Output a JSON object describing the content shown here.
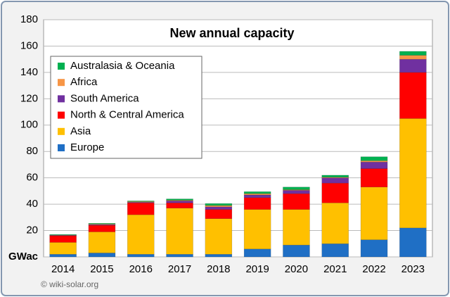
{
  "chart_data": {
    "type": "stacked-bar",
    "title": "New annual capacity",
    "credit": "© wiki-solar.org",
    "categories": [
      "2014",
      "2015",
      "2016",
      "2017",
      "2018",
      "2019",
      "2020",
      "2021",
      "2022",
      "2023"
    ],
    "series": [
      {
        "name": "Europe",
        "color": "#1f6fc5",
        "values": [
          2,
          3,
          2,
          2,
          2,
          6,
          9,
          10,
          13,
          22
        ]
      },
      {
        "name": "Asia",
        "color": "#ffc000",
        "values": [
          9,
          16,
          30,
          35,
          27,
          30,
          27,
          31,
          40,
          83
        ]
      },
      {
        "name": "North & Central America",
        "color": "#ff0000",
        "values": [
          5,
          5,
          9,
          4,
          7,
          9,
          12,
          15,
          14,
          35
        ]
      },
      {
        "name": "South America",
        "color": "#7030a0",
        "values": [
          0.3,
          0.5,
          0.5,
          1.5,
          2,
          2,
          2.5,
          4,
          5,
          10
        ]
      },
      {
        "name": "Africa",
        "color": "#f79646",
        "values": [
          0.3,
          0.5,
          0.5,
          0.5,
          1,
          1,
          0.5,
          0.5,
          1,
          3
        ]
      },
      {
        "name": "Australasia & Oceania",
        "color": "#00b050",
        "values": [
          0.4,
          0.5,
          0.5,
          1,
          1.5,
          1.5,
          2,
          1.5,
          3,
          3
        ]
      }
    ],
    "ylim": [
      0,
      180
    ],
    "yticks": [
      {
        "value": 0,
        "label": "GWac"
      },
      20,
      40,
      60,
      80,
      100,
      120,
      140,
      160,
      180
    ],
    "grid": true
  }
}
